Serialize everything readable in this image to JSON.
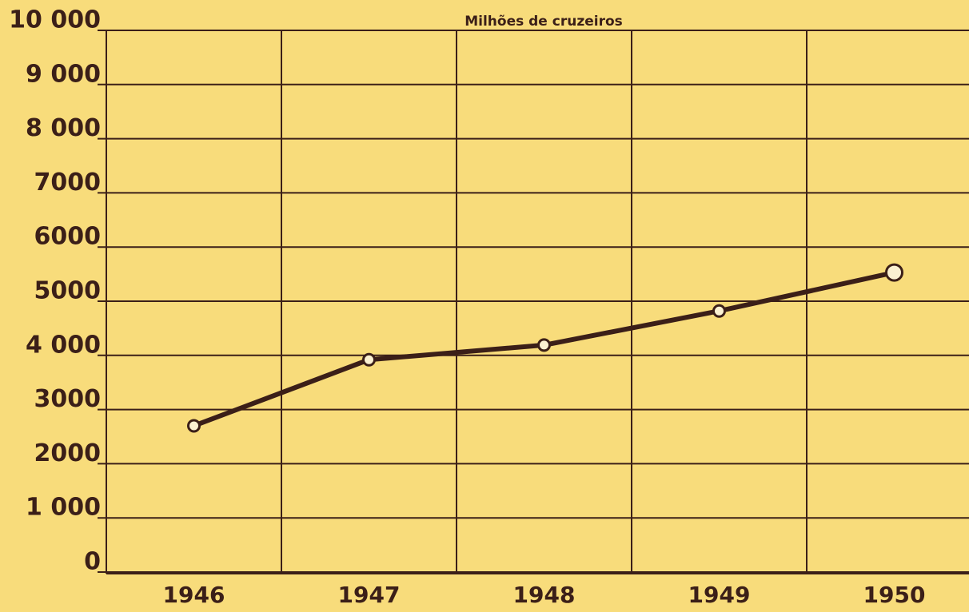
{
  "chart_data": {
    "type": "line",
    "title": "Milhões de cruzeiros",
    "categories": [
      "1946",
      "1947",
      "1948",
      "1949",
      "1950"
    ],
    "values": [
      2700,
      3920,
      4190,
      4820,
      5530
    ],
    "color": "#3b1f18",
    "ylim": [
      0,
      10000
    ],
    "yticks": [
      0,
      {
        "value": 1000,
        "label": "1 000"
      },
      2000,
      3000,
      {
        "value": 4000,
        "label": "4 000"
      },
      5000,
      6000,
      7000,
      {
        "value": 8000,
        "label": "8 000"
      },
      {
        "value": 9000,
        "label": "9 000"
      },
      {
        "value": 10000,
        "label": "10 000"
      }
    ],
    "grid": true
  }
}
